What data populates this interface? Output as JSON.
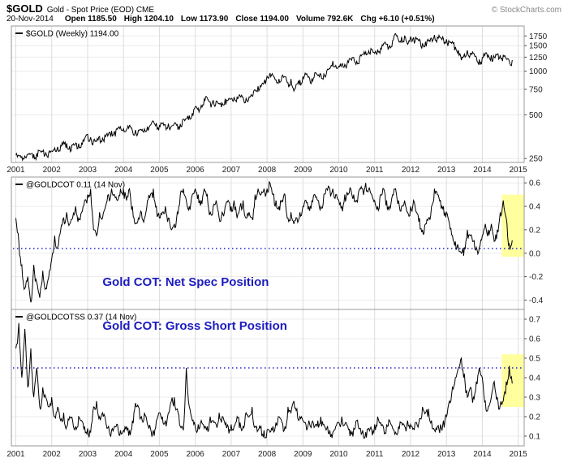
{
  "header": {
    "symbol": "$GOLD",
    "description": "Gold - Spot Price (EOD) CME",
    "copyright": "© StockCharts.com",
    "date": "20-Nov-2014",
    "quote": [
      {
        "label": "Open",
        "value": "1185.50"
      },
      {
        "label": "High",
        "value": "1204.10"
      },
      {
        "label": "Low",
        "value": "1173.90"
      },
      {
        "label": "Close",
        "value": "1194.00"
      },
      {
        "label": "Volume",
        "value": "792.6K"
      },
      {
        "label": "Chg",
        "value": "+6.10 (+0.51%)"
      }
    ]
  },
  "colors": {
    "line": "#000000",
    "dotted": "#2222cc",
    "highlight": "#ffff99",
    "annotation": "#1c1cc0",
    "grid_v": "#dddddd",
    "grid_h": "#ececec",
    "panel_border": "#999999",
    "tick_text": "#222222"
  },
  "chart_data": {
    "type": "line",
    "layout": "three stacked panels, shared x axis 2001-2015, y axes on right",
    "x_tick_labels": [
      "2001",
      "2002",
      "2003",
      "2004",
      "2005",
      "2006",
      "2007",
      "2008",
      "2009",
      "2010",
      "2011",
      "2012",
      "2013",
      "2014",
      "2015"
    ],
    "x_start": "Jan-2001",
    "x_interval": "monthly",
    "panels": [
      {
        "series_name": "gold-price-line",
        "label": "$GOLD (Weekly) 1194.00",
        "scale": "log",
        "ylim": [
          235,
          2050
        ],
        "yticks": [
          1750,
          1500,
          1250,
          1000,
          750,
          500,
          250
        ],
        "ytick_labels": [
          "1750",
          "1500",
          "1250",
          "1000",
          "750",
          "500",
          "250"
        ],
        "values": [
          265,
          262,
          258,
          260,
          268,
          270,
          267,
          272,
          283,
          280,
          274,
          276,
          282,
          296,
          301,
          308,
          326,
          318,
          304,
          310,
          320,
          317,
          319,
          342,
          367,
          350,
          334,
          328,
          355,
          346,
          354,
          370,
          388,
          386,
          398,
          414,
          402,
          396,
          423,
          388,
          393,
          392,
          391,
          400,
          415,
          425,
          453,
          438,
          422,
          435,
          428,
          435,
          418,
          437,
          429,
          433,
          466,
          470,
          495,
          513,
          568,
          556,
          582,
          644,
          653,
          613,
          632,
          623,
          599,
          603,
          646,
          632,
          651,
          664,
          663,
          677,
          659,
          650,
          665,
          672,
          743,
          789,
          783,
          834,
          923,
          971,
          933,
          871,
          885,
          930,
          918,
          833,
          884,
          730,
          814,
          870,
          919,
          952,
          916,
          883,
          975,
          934,
          953,
          955,
          1008,
          1040,
          1175,
          1096,
          1083,
          1118,
          1115,
          1179,
          1215,
          1244,
          1169,
          1246,
          1307,
          1359,
          1383,
          1410,
          1327,
          1411,
          1439,
          1556,
          1536,
          1500,
          1628,
          1813,
          1620,
          1722,
          1746,
          1531,
          1737,
          1711,
          1668,
          1664,
          1558,
          1598,
          1615,
          1692,
          1776,
          1719,
          1714,
          1675,
          1660,
          1588,
          1598,
          1469,
          1394,
          1192,
          1312,
          1394,
          1326,
          1324,
          1253,
          1205,
          1244,
          1326,
          1291,
          1288,
          1250,
          1315,
          1285,
          1287,
          1216,
          1173,
          1194
        ]
      },
      {
        "series_name": "net-spec-line",
        "label": "@GOLDCOT 0.11 (14 Nov)",
        "scale": "linear",
        "ylim": [
          -0.48,
          0.65
        ],
        "yticks": [
          0.6,
          0.4,
          0.2,
          0.0,
          -0.2,
          -0.4
        ],
        "ytick_labels": [
          "0.6",
          "0.4",
          "0.2",
          "0.0",
          "-0.2",
          "-0.4"
        ],
        "dotted_line": 0.04,
        "highlight": {
          "month_start": 162.5,
          "month_end": 170,
          "value_top": 0.5,
          "value_bottom": -0.03
        },
        "annotation": {
          "text": "Gold COT: Net Spec Position",
          "x_month": 29,
          "y_value": -0.28
        },
        "values": [
          0.3,
          0.1,
          -0.1,
          -0.3,
          -0.2,
          -0.42,
          -0.1,
          -0.25,
          -0.38,
          -0.15,
          -0.3,
          -0.2,
          -0.05,
          0.15,
          0.05,
          0.2,
          0.3,
          0.35,
          0.25,
          0.3,
          0.4,
          0.3,
          0.35,
          0.45,
          0.5,
          0.55,
          0.2,
          0.15,
          0.35,
          0.3,
          0.4,
          0.5,
          0.55,
          0.5,
          0.45,
          0.55,
          0.55,
          0.45,
          0.55,
          0.4,
          0.25,
          0.3,
          0.35,
          0.3,
          0.45,
          0.5,
          0.55,
          0.4,
          0.3,
          0.35,
          0.4,
          0.3,
          0.2,
          0.25,
          0.35,
          0.5,
          0.55,
          0.45,
          0.4,
          0.5,
          0.55,
          0.5,
          0.45,
          0.55,
          0.5,
          0.35,
          0.4,
          0.45,
          0.3,
          0.35,
          0.4,
          0.45,
          0.4,
          0.45,
          0.3,
          0.4,
          0.45,
          0.3,
          0.35,
          0.3,
          0.5,
          0.55,
          0.5,
          0.55,
          0.55,
          0.6,
          0.5,
          0.45,
          0.4,
          0.45,
          0.5,
          0.3,
          0.35,
          0.25,
          0.3,
          0.35,
          0.4,
          0.45,
          0.4,
          0.45,
          0.5,
          0.45,
          0.4,
          0.5,
          0.55,
          0.55,
          0.55,
          0.5,
          0.45,
          0.4,
          0.5,
          0.5,
          0.55,
          0.5,
          0.45,
          0.55,
          0.55,
          0.6,
          0.55,
          0.5,
          0.45,
          0.4,
          0.5,
          0.55,
          0.45,
          0.4,
          0.5,
          0.55,
          0.45,
          0.4,
          0.45,
          0.35,
          0.4,
          0.45,
          0.35,
          0.3,
          0.2,
          0.25,
          0.3,
          0.4,
          0.55,
          0.5,
          0.45,
          0.4,
          0.35,
          0.25,
          0.15,
          0.1,
          0.05,
          0.0,
          0.05,
          0.2,
          0.15,
          0.1,
          0.05,
          0.05,
          0.15,
          0.25,
          0.2,
          0.25,
          0.1,
          0.2,
          0.35,
          0.45,
          0.3,
          0.08,
          0.11
        ]
      },
      {
        "series_name": "gross-short-line",
        "label": "@GOLDCOTSS 0.37 (14 Nov)",
        "scale": "linear",
        "ylim": [
          0.05,
          0.75
        ],
        "yticks": [
          0.7,
          0.6,
          0.5,
          0.4,
          0.3,
          0.2,
          0.1
        ],
        "ytick_labels": [
          "0.7",
          "0.6",
          "0.5",
          "0.4",
          "0.3",
          "0.2",
          "0.1"
        ],
        "dotted_line": 0.45,
        "highlight": {
          "month_start": 162.5,
          "month_end": 170,
          "value_top": 0.52,
          "value_bottom": 0.25
        },
        "annotation": {
          "text": "Gold COT: Gross Short Position",
          "x_month": 29,
          "y_value": 0.645
        },
        "values": [
          0.55,
          0.68,
          0.4,
          0.65,
          0.35,
          0.55,
          0.3,
          0.45,
          0.25,
          0.35,
          0.3,
          0.25,
          0.3,
          0.2,
          0.25,
          0.18,
          0.22,
          0.15,
          0.2,
          0.18,
          0.15,
          0.2,
          0.18,
          0.15,
          0.14,
          0.12,
          0.25,
          0.28,
          0.2,
          0.22,
          0.18,
          0.15,
          0.13,
          0.15,
          0.16,
          0.13,
          0.13,
          0.15,
          0.13,
          0.18,
          0.27,
          0.25,
          0.2,
          0.22,
          0.16,
          0.14,
          0.13,
          0.18,
          0.22,
          0.2,
          0.18,
          0.22,
          0.28,
          0.3,
          0.24,
          0.15,
          0.13,
          0.45,
          0.25,
          0.18,
          0.15,
          0.16,
          0.18,
          0.14,
          0.15,
          0.2,
          0.18,
          0.16,
          0.22,
          0.2,
          0.16,
          0.15,
          0.16,
          0.15,
          0.2,
          0.17,
          0.15,
          0.22,
          0.2,
          0.25,
          0.15,
          0.13,
          0.15,
          0.13,
          0.13,
          0.12,
          0.15,
          0.17,
          0.2,
          0.17,
          0.15,
          0.25,
          0.22,
          0.28,
          0.24,
          0.2,
          0.18,
          0.16,
          0.18,
          0.17,
          0.15,
          0.18,
          0.2,
          0.16,
          0.14,
          0.13,
          0.12,
          0.15,
          0.17,
          0.2,
          0.16,
          0.15,
          0.13,
          0.14,
          0.18,
          0.14,
          0.13,
          0.12,
          0.14,
          0.13,
          0.16,
          0.2,
          0.17,
          0.14,
          0.16,
          0.18,
          0.14,
          0.12,
          0.15,
          0.17,
          0.15,
          0.18,
          0.16,
          0.14,
          0.17,
          0.19,
          0.25,
          0.22,
          0.24,
          0.18,
          0.13,
          0.15,
          0.16,
          0.18,
          0.2,
          0.28,
          0.35,
          0.4,
          0.45,
          0.5,
          0.42,
          0.3,
          0.35,
          0.3,
          0.38,
          0.45,
          0.4,
          0.28,
          0.25,
          0.3,
          0.38,
          0.3,
          0.26,
          0.28,
          0.38,
          0.46,
          0.37
        ]
      }
    ]
  }
}
